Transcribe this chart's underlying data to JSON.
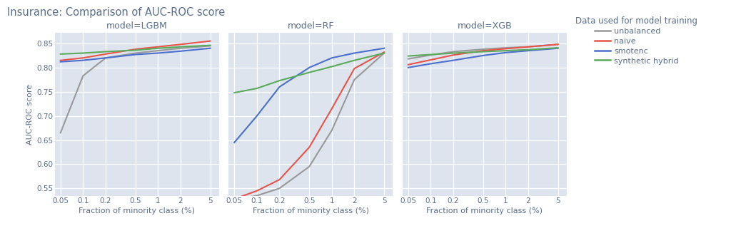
{
  "title": "Insurance: Comparison of AUC-ROC score",
  "xlabel": "Fraction of minority class (%)",
  "ylabel": "AUC-ROC score",
  "legend_title": "Data used for model training",
  "legend_labels": [
    "unbalanced",
    "naive",
    "smotenc",
    "synthetic hybrid"
  ],
  "colors": {
    "unbalanced": "#999999",
    "naive": "#e8534a",
    "smotenc": "#4c6fcd",
    "synthetic hybrid": "#5aaa5a"
  },
  "x_ticks": [
    0.05,
    0.1,
    0.2,
    0.5,
    1,
    2,
    5
  ],
  "x_tick_labels": [
    "0.05",
    "0.1",
    "0.2",
    "0.5",
    "1",
    "2",
    "5"
  ],
  "models": [
    "LGBM",
    "RF",
    "XGB"
  ],
  "subplot_titles": [
    "model=LGBM",
    "model=RF",
    "model=XGB"
  ],
  "bg_color": "#dde4ee",
  "fig_bg_color": "#ffffff",
  "yticks": [
    0.55,
    0.6,
    0.65,
    0.7,
    0.75,
    0.8,
    0.85
  ],
  "ylim": [
    0.535,
    0.872
  ],
  "text_color": "#5a6e8c",
  "data": {
    "LGBM": {
      "x": [
        0.05,
        0.1,
        0.2,
        0.5,
        1,
        2,
        5
      ],
      "unbalanced": [
        0.665,
        0.783,
        0.82,
        0.83,
        0.835,
        0.84,
        0.845
      ],
      "naive": [
        0.815,
        0.82,
        0.828,
        0.838,
        0.843,
        0.848,
        0.855
      ],
      "smotenc": [
        0.812,
        0.815,
        0.82,
        0.827,
        0.83,
        0.834,
        0.84
      ],
      "synthetic hybrid": [
        0.828,
        0.83,
        0.833,
        0.836,
        0.84,
        0.843,
        0.846
      ]
    },
    "RF": {
      "x": [
        0.05,
        0.1,
        0.2,
        0.5,
        1,
        2,
        5
      ],
      "unbalanced": [
        0.527,
        0.535,
        0.55,
        0.595,
        0.67,
        0.775,
        0.83
      ],
      "naive": [
        0.528,
        0.545,
        0.568,
        0.635,
        0.715,
        0.798,
        0.832
      ],
      "smotenc": [
        0.645,
        0.7,
        0.76,
        0.8,
        0.82,
        0.83,
        0.84
      ],
      "synthetic hybrid": [
        0.748,
        0.757,
        0.773,
        0.79,
        0.802,
        0.815,
        0.83
      ]
    },
    "XGB": {
      "x": [
        0.05,
        0.1,
        0.2,
        0.5,
        1,
        2,
        5
      ],
      "unbalanced": [
        0.818,
        0.826,
        0.833,
        0.838,
        0.841,
        0.843,
        0.848
      ],
      "naive": [
        0.806,
        0.816,
        0.826,
        0.835,
        0.839,
        0.843,
        0.848
      ],
      "smotenc": [
        0.8,
        0.808,
        0.815,
        0.825,
        0.831,
        0.835,
        0.84
      ],
      "synthetic hybrid": [
        0.824,
        0.827,
        0.83,
        0.833,
        0.835,
        0.837,
        0.841
      ]
    }
  }
}
